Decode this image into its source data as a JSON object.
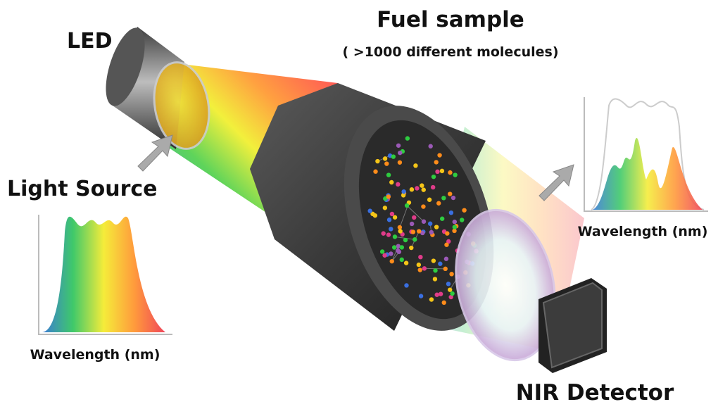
{
  "labels": {
    "led": "LED",
    "fuel_sample": {
      "title": "Fuel sample",
      "subtitle": "( >1000 different molecules)"
    },
    "light_source": "Light Source",
    "source_spectrum": {
      "x_label": "Wavelength (nm)"
    },
    "detector_spectrum": {
      "x_label": "Wavelength (nm)"
    },
    "nir_detector": "NIR Detector"
  }
}
